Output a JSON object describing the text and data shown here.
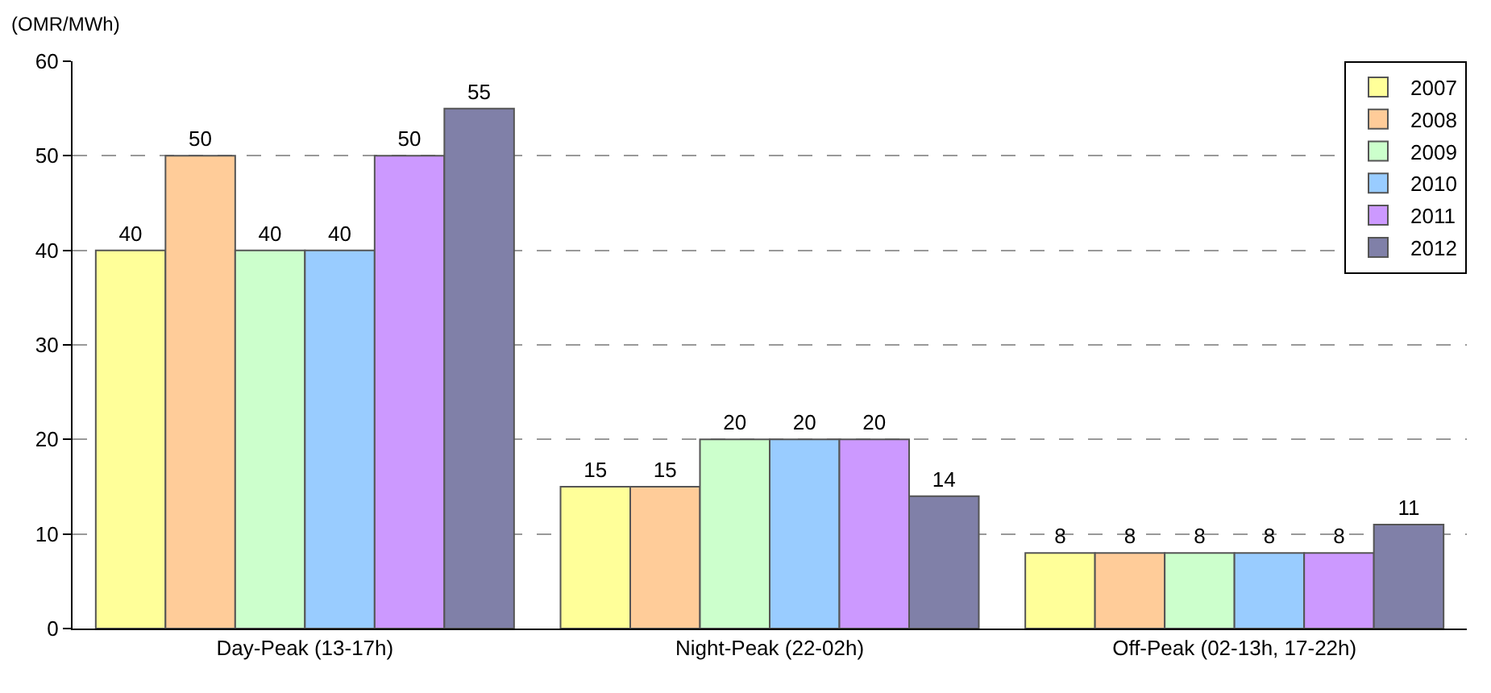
{
  "chart_data": {
    "type": "bar",
    "ylabel": "(OMR/MWh)",
    "categories": [
      "Day-Peak (13-17h)",
      "Night-Peak (22-02h)",
      "Off-Peak (02-13h, 17-22h)"
    ],
    "series": [
      {
        "name": "2007",
        "color": "#ffff99",
        "values": [
          40,
          15,
          8
        ]
      },
      {
        "name": "2008",
        "color": "#ffcc99",
        "values": [
          50,
          15,
          8
        ]
      },
      {
        "name": "2009",
        "color": "#ccffcc",
        "values": [
          40,
          20,
          8
        ]
      },
      {
        "name": "2010",
        "color": "#99ccff",
        "values": [
          40,
          20,
          8
        ]
      },
      {
        "name": "2011",
        "color": "#cc99ff",
        "values": [
          50,
          20,
          8
        ]
      },
      {
        "name": "2012",
        "color": "#8080a8",
        "values": [
          55,
          14,
          11
        ]
      }
    ],
    "ylim": [
      0,
      60
    ],
    "yticks": [
      0,
      10,
      20,
      30,
      40,
      50,
      60
    ],
    "grid": "y",
    "legend": "top right",
    "data_labels": true
  }
}
